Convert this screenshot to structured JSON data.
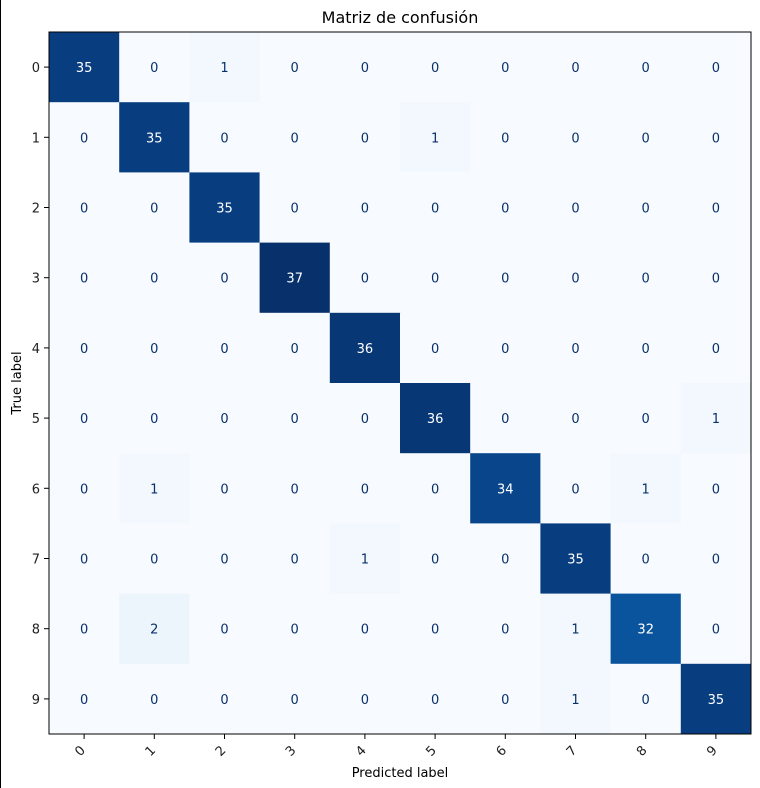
{
  "chart_data": {
    "type": "heatmap",
    "title": "Matriz de confusión",
    "xlabel": "Predicted label",
    "ylabel": "True label",
    "x_categories": [
      "0",
      "1",
      "2",
      "3",
      "4",
      "5",
      "6",
      "7",
      "8",
      "9"
    ],
    "y_categories": [
      "0",
      "1",
      "2",
      "3",
      "4",
      "5",
      "6",
      "7",
      "8",
      "9"
    ],
    "matrix": [
      [
        35,
        0,
        1,
        0,
        0,
        0,
        0,
        0,
        0,
        0
      ],
      [
        0,
        35,
        0,
        0,
        0,
        1,
        0,
        0,
        0,
        0
      ],
      [
        0,
        0,
        35,
        0,
        0,
        0,
        0,
        0,
        0,
        0
      ],
      [
        0,
        0,
        0,
        37,
        0,
        0,
        0,
        0,
        0,
        0
      ],
      [
        0,
        0,
        0,
        0,
        36,
        0,
        0,
        0,
        0,
        0
      ],
      [
        0,
        0,
        0,
        0,
        0,
        36,
        0,
        0,
        0,
        1
      ],
      [
        0,
        1,
        0,
        0,
        0,
        0,
        34,
        0,
        1,
        0
      ],
      [
        0,
        0,
        0,
        0,
        1,
        0,
        0,
        35,
        0,
        0
      ],
      [
        0,
        2,
        0,
        0,
        0,
        0,
        0,
        1,
        32,
        0
      ],
      [
        0,
        0,
        0,
        0,
        0,
        0,
        0,
        1,
        0,
        35
      ]
    ],
    "colormap": "Blues",
    "vmin": 0,
    "vmax": 37,
    "grid": false
  }
}
